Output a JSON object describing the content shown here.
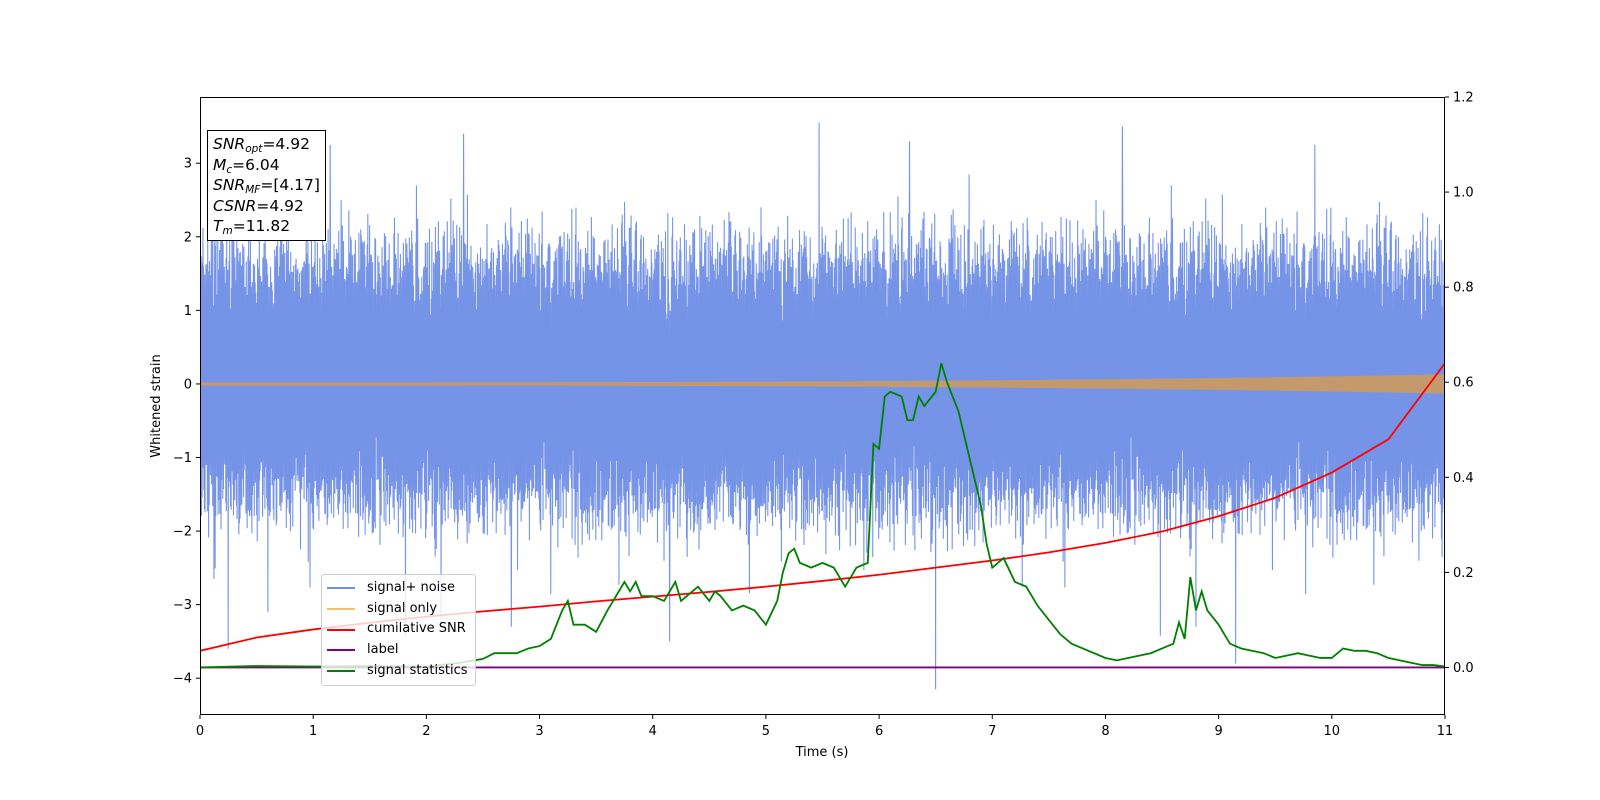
{
  "chart_data": {
    "type": "line",
    "title": "",
    "xlabel": "Time (s)",
    "ylabel": "Whitened strain",
    "xlim": [
      0,
      11
    ],
    "ylim_left": [
      -4.5,
      3.9
    ],
    "ylim_right": [
      -0.1,
      1.2
    ],
    "x_ticks": [
      0,
      1,
      2,
      3,
      4,
      5,
      6,
      7,
      8,
      9,
      10,
      11
    ],
    "y_ticks_left": [
      -4,
      -3,
      -2,
      -1,
      0,
      1,
      2,
      3
    ],
    "y_ticks_right": [
      0.0,
      0.2,
      0.4,
      0.6,
      0.8,
      1.0,
      1.2
    ],
    "grid": false,
    "legend_position": "lower-left",
    "colors": {
      "signal_noise": "#6f8ee6",
      "signal_only": "#f5c06a",
      "signal_only_overlay": "#c49a6c",
      "cumulative_snr": "#ff0000",
      "label": "#800080",
      "signal_statistics": "#008000"
    },
    "annotations": [
      {
        "key": "SNR",
        "sub": "opt",
        "value": "=4.92"
      },
      {
        "key": "M",
        "sub": "c",
        "value": "=6.04"
      },
      {
        "key": "SNR",
        "sub": "MF",
        "value": "=[4.17]"
      },
      {
        "key": "CSNR",
        "sub": "",
        "value": "=4.92"
      },
      {
        "key": "T",
        "sub": "m",
        "value": "=11.82"
      }
    ],
    "series": [
      {
        "name": "signal+ noise",
        "axis": "left",
        "style": "noise",
        "band": [
          -1.9,
          2.0
        ],
        "x_range": [
          0,
          11
        ],
        "extreme_spikes": [
          {
            "x": 0.25,
            "y": -3.6
          },
          {
            "x": 0.6,
            "y": -3.1
          },
          {
            "x": 1.15,
            "y": 3.25
          },
          {
            "x": 2.33,
            "y": 3.4
          },
          {
            "x": 2.75,
            "y": -3.3
          },
          {
            "x": 4.15,
            "y": -3.5
          },
          {
            "x": 5.47,
            "y": 3.55
          },
          {
            "x": 6.27,
            "y": 3.3
          },
          {
            "x": 6.5,
            "y": -4.15
          },
          {
            "x": 8.15,
            "y": 3.5
          },
          {
            "x": 9.15,
            "y": -3.8
          },
          {
            "x": 9.85,
            "y": 3.25
          }
        ]
      },
      {
        "name": "signal only",
        "axis": "left",
        "style": "chirp",
        "x_range": [
          0,
          11
        ],
        "amplitude_start": 0.02,
        "amplitude_end": 0.13
      },
      {
        "name": "cumilative SNR",
        "axis": "right",
        "x": [
          0,
          0.5,
          1,
          1.5,
          2,
          2.5,
          3,
          3.5,
          4,
          4.5,
          5,
          5.5,
          6,
          6.5,
          7,
          7.5,
          8,
          8.5,
          9,
          9.5,
          10,
          10.5,
          11
        ],
        "values": [
          0.035,
          0.063,
          0.08,
          0.094,
          0.107,
          0.118,
          0.128,
          0.139,
          0.149,
          0.159,
          0.17,
          0.182,
          0.195,
          0.21,
          0.225,
          0.242,
          0.262,
          0.286,
          0.318,
          0.357,
          0.41,
          0.48,
          0.64
        ]
      },
      {
        "name": "label",
        "axis": "right",
        "x": [
          0,
          11
        ],
        "values": [
          0.0,
          0.0
        ]
      },
      {
        "name": "signal statistics",
        "axis": "right",
        "x": [
          0,
          0.5,
          1,
          1.5,
          2,
          2.3,
          2.5,
          2.6,
          2.8,
          2.9,
          3.0,
          3.1,
          3.2,
          3.25,
          3.3,
          3.4,
          3.5,
          3.6,
          3.7,
          3.75,
          3.8,
          3.85,
          3.9,
          4.0,
          4.1,
          4.2,
          4.25,
          4.3,
          4.4,
          4.5,
          4.55,
          4.6,
          4.7,
          4.8,
          4.9,
          5.0,
          5.1,
          5.15,
          5.2,
          5.25,
          5.3,
          5.4,
          5.5,
          5.6,
          5.7,
          5.8,
          5.9,
          5.95,
          6.0,
          6.05,
          6.1,
          6.2,
          6.25,
          6.3,
          6.35,
          6.4,
          6.5,
          6.55,
          6.6,
          6.7,
          6.8,
          6.9,
          6.95,
          7.0,
          7.1,
          7.2,
          7.3,
          7.4,
          7.5,
          7.6,
          7.7,
          7.8,
          8.0,
          8.1,
          8.2,
          8.3,
          8.4,
          8.5,
          8.6,
          8.65,
          8.7,
          8.75,
          8.8,
          8.85,
          8.9,
          9.0,
          9.1,
          9.2,
          9.3,
          9.4,
          9.5,
          9.6,
          9.7,
          9.8,
          9.9,
          10.0,
          10.1,
          10.2,
          10.3,
          10.4,
          10.5,
          10.6,
          10.7,
          10.8,
          10.9,
          11.0
        ],
        "values": [
          0.0,
          0.003,
          0.002,
          0.003,
          0.002,
          0.01,
          0.018,
          0.03,
          0.03,
          0.04,
          0.045,
          0.06,
          0.12,
          0.14,
          0.09,
          0.09,
          0.075,
          0.12,
          0.16,
          0.18,
          0.16,
          0.18,
          0.15,
          0.15,
          0.14,
          0.18,
          0.14,
          0.15,
          0.17,
          0.14,
          0.16,
          0.15,
          0.12,
          0.13,
          0.12,
          0.09,
          0.14,
          0.2,
          0.24,
          0.25,
          0.22,
          0.21,
          0.22,
          0.21,
          0.17,
          0.21,
          0.22,
          0.47,
          0.46,
          0.57,
          0.58,
          0.57,
          0.52,
          0.52,
          0.57,
          0.55,
          0.58,
          0.64,
          0.6,
          0.54,
          0.44,
          0.34,
          0.26,
          0.21,
          0.23,
          0.18,
          0.17,
          0.13,
          0.1,
          0.07,
          0.05,
          0.04,
          0.02,
          0.015,
          0.02,
          0.025,
          0.03,
          0.04,
          0.05,
          0.095,
          0.06,
          0.19,
          0.12,
          0.16,
          0.12,
          0.09,
          0.05,
          0.04,
          0.035,
          0.03,
          0.02,
          0.025,
          0.03,
          0.025,
          0.02,
          0.02,
          0.04,
          0.035,
          0.035,
          0.03,
          0.02,
          0.015,
          0.01,
          0.005,
          0.005,
          0.002
        ]
      }
    ]
  }
}
